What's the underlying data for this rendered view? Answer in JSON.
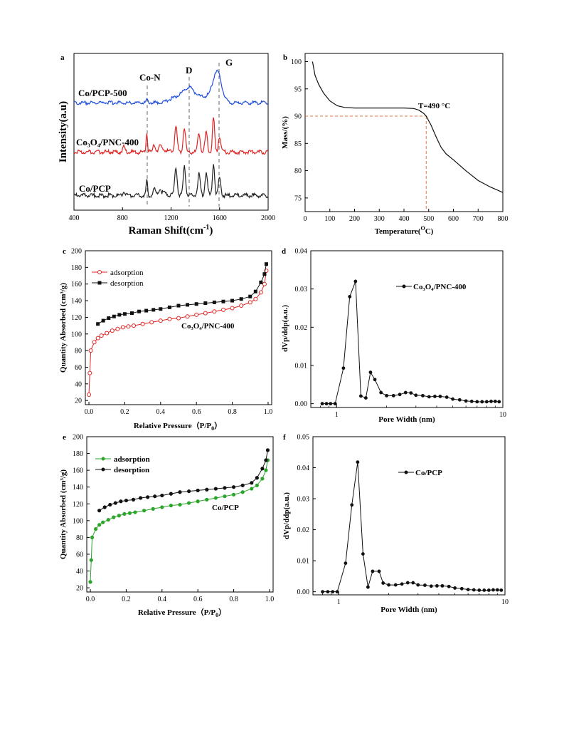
{
  "chart_data": [
    {
      "panel": "a",
      "type": "line",
      "xlabel": "Raman Shift(cm",
      "xlabel_sup": "-1",
      "xlabel_end": ")",
      "ylabel": "Intensity(a.u)",
      "xlim": [
        400,
        2000
      ],
      "xticks": [
        "400",
        "800",
        "1200",
        "1600",
        "2000"
      ],
      "yticks": [],
      "annotations": {
        "con": "Co-N",
        "d": "D",
        "g": "G"
      },
      "series": [
        {
          "name": "Co/PCP-500",
          "color": "#1f4fe0"
        },
        {
          "name": "Co₃O₄/PNC-400",
          "color": "#e02424"
        },
        {
          "name": "Co/PCP",
          "color": "#222222"
        }
      ]
    },
    {
      "panel": "b",
      "type": "line",
      "xlabel": "Temperature(",
      "xlabel_sup": "O",
      "xlabel_end": "C)",
      "ylabel": "Mass/(%)",
      "xlim": [
        0,
        800
      ],
      "ylim": [
        72.5,
        101.5
      ],
      "xticks": [
        "0",
        "100",
        "200",
        "300",
        "400",
        "500",
        "600",
        "700",
        "800"
      ],
      "yticks": [
        "75",
        "80",
        "85",
        "90",
        "95",
        "100"
      ],
      "annotation": "T=490 °C",
      "marker": {
        "x": 490,
        "y": 90
      },
      "x": [
        30,
        40,
        55,
        75,
        100,
        130,
        160,
        200,
        300,
        400,
        440,
        460,
        480,
        490,
        510,
        530,
        550,
        570,
        600,
        650,
        700,
        750,
        800
      ],
      "y": [
        100,
        97.5,
        95.8,
        94.2,
        92.8,
        91.9,
        91.6,
        91.5,
        91.5,
        91.5,
        91.4,
        91.1,
        90.5,
        90.0,
        88.3,
        86.2,
        84.3,
        83.1,
        82.0,
        80.0,
        78.2,
        77.0,
        76.0
      ]
    },
    {
      "panel": "c",
      "type": "scatter",
      "xlabel": "Relative Pressure（P/P",
      "xlabel_sub": "0",
      "xlabel_end": "）",
      "ylabel": "Quantity Absorbed (cm³/g)",
      "xlim": [
        -0.02,
        1.02
      ],
      "ylim": [
        15,
        200
      ],
      "xticks": [
        "0.0",
        "0.2",
        "0.4",
        "0.6",
        "0.8",
        "1.0"
      ],
      "yticks": [
        "20",
        "40",
        "60",
        "80",
        "100",
        "120",
        "140",
        "160",
        "180",
        "200"
      ],
      "sample": "Co₃O₄/PNC-400",
      "series": [
        {
          "name": "adsorption",
          "color": "#e02424",
          "marker": "open",
          "x": [
            0.0,
            0.005,
            0.01,
            0.03,
            0.05,
            0.07,
            0.1,
            0.13,
            0.16,
            0.19,
            0.22,
            0.25,
            0.3,
            0.35,
            0.4,
            0.45,
            0.5,
            0.55,
            0.6,
            0.65,
            0.7,
            0.75,
            0.8,
            0.85,
            0.9,
            0.93,
            0.96,
            0.98,
            0.99
          ],
          "y": [
            27,
            53,
            80,
            90,
            95,
            98,
            101,
            104,
            106,
            108,
            109,
            110,
            112,
            114,
            116,
            118,
            119,
            121,
            123,
            125,
            127,
            129,
            131,
            134,
            138,
            142,
            150,
            160,
            176
          ]
        },
        {
          "name": "desorption",
          "color": "#111111",
          "marker": "filled",
          "x": [
            0.05,
            0.08,
            0.11,
            0.14,
            0.17,
            0.2,
            0.24,
            0.28,
            0.32,
            0.36,
            0.4,
            0.45,
            0.5,
            0.55,
            0.6,
            0.65,
            0.7,
            0.75,
            0.8,
            0.85,
            0.9,
            0.93,
            0.96,
            0.98,
            0.99
          ],
          "y": [
            112,
            116,
            119,
            121,
            123,
            124,
            125,
            127,
            128,
            129,
            130,
            132,
            134,
            135,
            136,
            137,
            138,
            139,
            140,
            142,
            145,
            151,
            162,
            172,
            184
          ]
        }
      ]
    },
    {
      "panel": "d",
      "type": "line",
      "xlabel": "Pore Width (nm)",
      "ylabel": "dVp/ddp(a.u.)",
      "xscale": "log",
      "xlim": [
        0.7,
        10
      ],
      "ylim": [
        -0.001,
        0.04
      ],
      "xticks": [
        "1",
        "10"
      ],
      "yticks": [
        "0.00",
        "0.01",
        "0.02",
        "0.03",
        "0.04"
      ],
      "series": [
        {
          "name": "Co₃O₄/PNC-400",
          "color": "#111111",
          "x": [
            0.82,
            0.87,
            0.92,
            0.98,
            1.1,
            1.2,
            1.3,
            1.4,
            1.5,
            1.6,
            1.7,
            1.85,
            2.0,
            2.2,
            2.4,
            2.6,
            2.8,
            3.0,
            3.3,
            3.6,
            3.9,
            4.2,
            4.6,
            5.0,
            5.5,
            6.0,
            6.5,
            7.0,
            7.5,
            8.0,
            8.5,
            9.0,
            9.5
          ],
          "y": [
            0.0,
            0.0,
            0.0,
            0.0,
            0.0093,
            0.028,
            0.032,
            0.002,
            0.0015,
            0.0082,
            0.0063,
            0.0029,
            0.0021,
            0.0021,
            0.0024,
            0.0029,
            0.0028,
            0.0022,
            0.0021,
            0.0018,
            0.0019,
            0.0019,
            0.0017,
            0.0012,
            0.001,
            0.0007,
            0.0006,
            0.0005,
            0.0005,
            0.0005,
            0.0006,
            0.0006,
            0.0005
          ]
        }
      ]
    },
    {
      "panel": "e",
      "type": "scatter",
      "xlabel": "Relative Pressure（P/P",
      "xlabel_sub": "0",
      "xlabel_end": "）",
      "ylabel": "Quantity Absorbed (cm³/g)",
      "xlim": [
        -0.02,
        1.02
      ],
      "ylim": [
        15,
        200
      ],
      "xticks": [
        "0.0",
        "0.2",
        "0.4",
        "0.6",
        "0.8",
        "1.0"
      ],
      "yticks": [
        "20",
        "40",
        "60",
        "80",
        "100",
        "120",
        "140",
        "160",
        "180",
        "200"
      ],
      "sample": "Co/PCP",
      "series": [
        {
          "name": "adsorption",
          "color": "#2aa52a",
          "marker": "filled",
          "x": [
            0.0,
            0.005,
            0.01,
            0.03,
            0.05,
            0.07,
            0.1,
            0.13,
            0.16,
            0.19,
            0.22,
            0.25,
            0.3,
            0.35,
            0.4,
            0.45,
            0.5,
            0.55,
            0.6,
            0.65,
            0.7,
            0.75,
            0.8,
            0.85,
            0.9,
            0.93,
            0.96,
            0.98,
            0.99
          ],
          "y": [
            27,
            53,
            80,
            90,
            95,
            98,
            101,
            104,
            106,
            108,
            109,
            110,
            112,
            114,
            116,
            118,
            119,
            121,
            123,
            125,
            127,
            129,
            131,
            134,
            138,
            142,
            150,
            160,
            172
          ]
        },
        {
          "name": "desorption",
          "color": "#111111",
          "marker": "filled",
          "x": [
            0.05,
            0.08,
            0.11,
            0.14,
            0.17,
            0.2,
            0.24,
            0.28,
            0.32,
            0.36,
            0.4,
            0.45,
            0.5,
            0.55,
            0.6,
            0.65,
            0.7,
            0.75,
            0.8,
            0.85,
            0.9,
            0.93,
            0.96,
            0.98,
            0.99
          ],
          "y": [
            112,
            116,
            119,
            121,
            123,
            124,
            125,
            127,
            128,
            129,
            130,
            132,
            134,
            135,
            136,
            137,
            138,
            139,
            140,
            142,
            145,
            151,
            162,
            172,
            184
          ]
        }
      ]
    },
    {
      "panel": "f",
      "type": "line",
      "xlabel": "Pore Width (nm)",
      "ylabel": "dVp/ddp(a.u.)",
      "xscale": "log",
      "xlim": [
        0.7,
        10
      ],
      "ylim": [
        -0.001,
        0.05
      ],
      "xticks": [
        "1",
        "10"
      ],
      "yticks": [
        "0.00",
        "0.01",
        "0.02",
        "0.03",
        "0.04",
        "0.05"
      ],
      "series": [
        {
          "name": "Co/PCP",
          "color": "#111111",
          "x": [
            0.8,
            0.86,
            0.92,
            0.98,
            1.1,
            1.2,
            1.3,
            1.4,
            1.5,
            1.6,
            1.75,
            1.85,
            2.0,
            2.2,
            2.4,
            2.6,
            2.8,
            3.0,
            3.3,
            3.6,
            3.9,
            4.2,
            4.6,
            5.0,
            5.5,
            6.0,
            6.5,
            7.0,
            7.5,
            8.0,
            8.5,
            9.0,
            9.5
          ],
          "y": [
            0.0,
            0.0,
            0.0,
            0.0,
            0.0092,
            0.028,
            0.0418,
            0.0122,
            0.0015,
            0.0066,
            0.0066,
            0.0028,
            0.0022,
            0.0022,
            0.0025,
            0.0029,
            0.0029,
            0.0022,
            0.0021,
            0.0018,
            0.0019,
            0.0019,
            0.0017,
            0.0012,
            0.001,
            0.0007,
            0.0006,
            0.0005,
            0.0005,
            0.0005,
            0.0006,
            0.0006,
            0.0005
          ]
        }
      ]
    }
  ]
}
